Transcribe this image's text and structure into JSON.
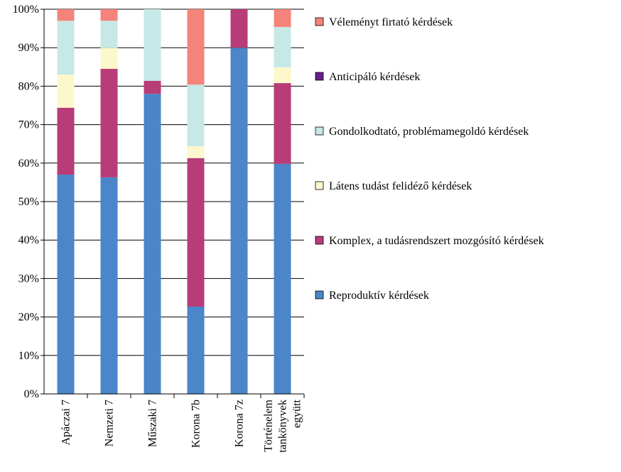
{
  "chart_data": {
    "type": "stacked_bar",
    "categories": [
      "Apáczai 7",
      "Nemzeti 7",
      "Műszaki 7",
      "Korona 7b",
      "Korona 7z",
      "Történelem tankönyvek együtt"
    ],
    "series": [
      {
        "name": "Reproduktív kérdések",
        "color": "#4a86c8",
        "values": [
          57,
          56.3,
          78,
          22.7,
          90,
          59.8
        ]
      },
      {
        "name": "Komplex, a tudásrendszert mozgósító kérdések",
        "color": "#b83c78",
        "values": [
          17.4,
          28.2,
          3.4,
          38.6,
          10,
          21
        ]
      },
      {
        "name": "Látens tudást felidéző kérdések",
        "color": "#fdf8cc",
        "values": [
          8.6,
          5.5,
          0,
          3.1,
          0,
          4.1
        ]
      },
      {
        "name": "Gondolkodtató, problémamegoldó kérdések",
        "color": "#c6e8e6",
        "values": [
          14,
          7,
          18.6,
          16,
          0,
          10.5
        ]
      },
      {
        "name": "Anticipáló kérdések",
        "color": "#6a1f8a",
        "values": [
          0,
          0,
          0,
          0,
          0,
          0
        ]
      },
      {
        "name": "Véleményt firtató kérdések",
        "color": "#f4837a",
        "values": [
          3,
          3,
          0,
          19.6,
          0,
          4.6
        ]
      }
    ],
    "ylim": [
      0,
      100
    ],
    "yticks": [
      {
        "value": 0,
        "label": "0%"
      },
      {
        "value": 10,
        "label": "10%"
      },
      {
        "value": 20,
        "label": "20%"
      },
      {
        "value": 30,
        "label": "30%"
      },
      {
        "value": 40,
        "label": "40%"
      },
      {
        "value": 50,
        "label": "50%"
      },
      {
        "value": 60,
        "label": "60%"
      },
      {
        "value": 70,
        "label": "70%"
      },
      {
        "value": 80,
        "label": "80%"
      },
      {
        "value": 90,
        "label": "90%"
      },
      {
        "value": 100,
        "label": "100%"
      }
    ],
    "grid": true
  }
}
